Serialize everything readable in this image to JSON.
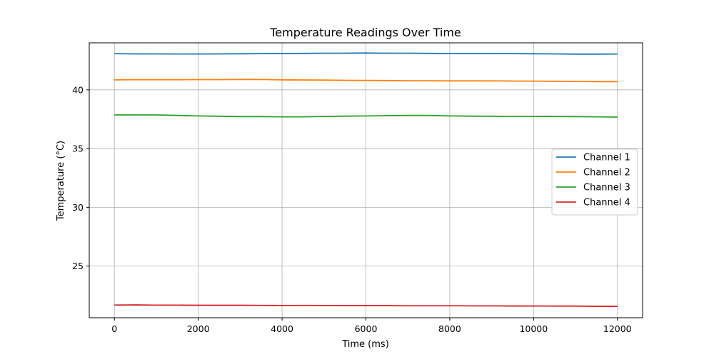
{
  "chart_data": {
    "type": "line",
    "title": "Temperature Readings Over Time",
    "xlabel": "Time (ms)",
    "ylabel": "Temperature (°C)",
    "xlim": [
      -600,
      12600
    ],
    "ylim": [
      20.6,
      44.0
    ],
    "xticks": [
      0,
      2000,
      4000,
      6000,
      8000,
      10000,
      12000
    ],
    "yticks": [
      25,
      30,
      35,
      40
    ],
    "grid": true,
    "legend_position": "center-right",
    "x": [
      0,
      500,
      1000,
      1500,
      2000,
      2500,
      3000,
      3500,
      4000,
      4500,
      5000,
      5500,
      6000,
      6500,
      7000,
      7500,
      8000,
      8500,
      9000,
      9500,
      10000,
      10500,
      11000,
      11500,
      12000
    ],
    "series": [
      {
        "name": "Channel 1",
        "color": "#1f77b4",
        "values": [
          43.08,
          43.06,
          43.06,
          43.05,
          43.05,
          43.06,
          43.07,
          43.08,
          43.09,
          43.1,
          43.12,
          43.12,
          43.13,
          43.12,
          43.12,
          43.1,
          43.09,
          43.09,
          43.08,
          43.08,
          43.07,
          43.06,
          43.04,
          43.04,
          43.05
        ]
      },
      {
        "name": "Channel 2",
        "color": "#ff7f0e",
        "values": [
          40.85,
          40.86,
          40.86,
          40.86,
          40.87,
          40.87,
          40.88,
          40.88,
          40.85,
          40.84,
          40.83,
          40.81,
          40.8,
          40.79,
          40.77,
          40.77,
          40.76,
          40.76,
          40.76,
          40.75,
          40.74,
          40.73,
          40.71,
          40.7,
          40.7
        ]
      },
      {
        "name": "Channel 3",
        "color": "#2ca02c",
        "values": [
          37.87,
          37.86,
          37.86,
          37.82,
          37.78,
          37.75,
          37.72,
          37.72,
          37.7,
          37.7,
          37.73,
          37.76,
          37.78,
          37.8,
          37.82,
          37.82,
          37.78,
          37.76,
          37.75,
          37.74,
          37.74,
          37.73,
          37.72,
          37.7,
          37.68
        ]
      },
      {
        "name": "Channel 4",
        "color": "#d62728",
        "values": [
          21.68,
          21.69,
          21.67,
          21.67,
          21.66,
          21.66,
          21.66,
          21.65,
          21.64,
          21.65,
          21.64,
          21.63,
          21.63,
          21.63,
          21.62,
          21.62,
          21.62,
          21.61,
          21.61,
          21.6,
          21.6,
          21.59,
          21.59,
          21.57,
          21.57
        ]
      }
    ]
  }
}
